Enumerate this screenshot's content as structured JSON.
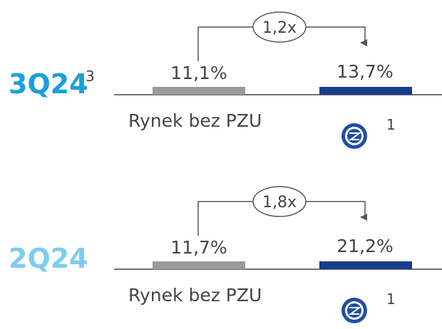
{
  "panels": [
    {
      "period": "3Q24",
      "period_note": "3",
      "ratio": "1,2x",
      "market_value": "11,1%",
      "pzu_value": "13,7%",
      "market_label": "Rynek bez PZU",
      "pzu_note": "1"
    },
    {
      "period": "2Q24",
      "period_note": null,
      "ratio": "1,8x",
      "market_value": "11,7%",
      "pzu_value": "21,2%",
      "market_label": "Rynek bez PZU",
      "pzu_note": "1"
    }
  ]
}
